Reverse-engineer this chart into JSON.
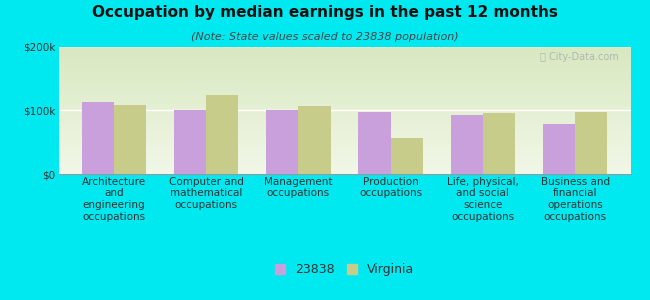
{
  "title": "Occupation by median earnings in the past 12 months",
  "subtitle": "(Note: State values scaled to 23838 population)",
  "categories": [
    "Architecture\nand\nengineering\noccupations",
    "Computer and\nmathematical\noccupations",
    "Management\noccupations",
    "Production\noccupations",
    "Life, physical,\nand social\nscience\noccupations",
    "Business and\nfinancial\noperations\noccupations"
  ],
  "values_local": [
    113000,
    100000,
    100000,
    97000,
    93000,
    78000
  ],
  "values_state": [
    108000,
    124000,
    107000,
    57000,
    96000,
    97000
  ],
  "bar_color_local": "#c9a0dc",
  "bar_color_state": "#c8cc8a",
  "background_color": "#00e8f0",
  "plot_bg_top": "#d8e8c0",
  "plot_bg_bottom": "#f2f7e8",
  "ylim": [
    0,
    200000
  ],
  "yticks": [
    0,
    100000,
    200000
  ],
  "ytick_labels": [
    "$0",
    "$100k",
    "$200k"
  ],
  "legend_labels": [
    "23838",
    "Virginia"
  ],
  "title_fontsize": 11,
  "subtitle_fontsize": 8,
  "tick_fontsize": 7.5,
  "bar_width": 0.35
}
